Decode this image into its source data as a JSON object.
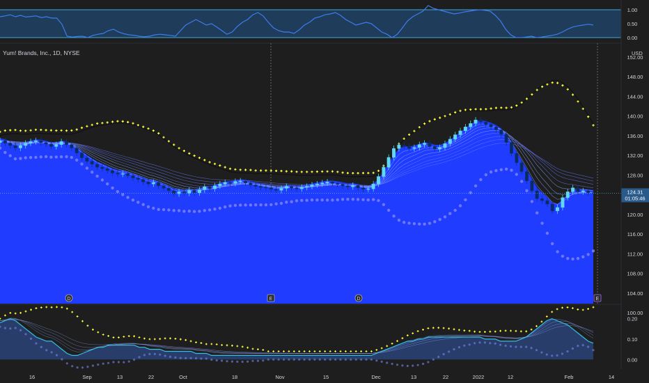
{
  "chart_data": {
    "type": "candlestick",
    "title": "Yum! Brands, Inc., 1D, NYSE",
    "currency_label": "USD",
    "last_price_label": "124.31",
    "countdown_label": "01:05:46",
    "colors": {
      "background": "#1e1e1e",
      "up_candle": "#5fd8f5",
      "down_candle": "#0a2a66",
      "ribbon_fill": "#1f3cff",
      "sar_dots": "#ffff3c",
      "lower_band_dots": "#7d83f2",
      "oscillator_line": "#3d7cf0",
      "oscillator_fill": "#2d4a8a",
      "panel_top_fill": "#1f3d5a",
      "price_tag": "#2a5a8a"
    },
    "x_axis": {
      "ticks": [
        "16",
        "Sep",
        "13",
        "22",
        "Oct",
        "18",
        "Nov",
        "15",
        "Dec",
        "13",
        "22",
        "2022",
        "12",
        "Feb",
        "14"
      ]
    },
    "price_panel": {
      "y_axis_ticks": [
        "152.00",
        "148.00",
        "144.00",
        "140.00",
        "136.00",
        "132.00",
        "128.00",
        "124.00",
        "120.00",
        "116.00",
        "112.00",
        "108.00",
        "104.00",
        "100.00"
      ],
      "ylim": [
        100,
        152
      ],
      "events": [
        "D",
        "E",
        "D",
        "E"
      ],
      "close": [
        135,
        134.5,
        134,
        133.5,
        134,
        134.5,
        134.8,
        135,
        134.6,
        134.3,
        133.8,
        134.2,
        134.8,
        134.2,
        133.5,
        132.5,
        131.5,
        130.8,
        130.2,
        129.6,
        129.3,
        128.9,
        128.4,
        128.2,
        128.3,
        127.9,
        127.4,
        127.1,
        126.6,
        126.2,
        126.5,
        125.8,
        125.3,
        124.8,
        124.2,
        124.6,
        124.3,
        124.9,
        124.4,
        125,
        125.6,
        125.2,
        125.8,
        126.2,
        126.5,
        126.3,
        126.7,
        126.8,
        126.4,
        126,
        125.7,
        125.5,
        125.4,
        125.1,
        124.9,
        125.3,
        125.7,
        125.4,
        125.2,
        125.5,
        125.7,
        126,
        126.2,
        126.4,
        126.6,
        126.3,
        126.1,
        125.8,
        125.6,
        125.9,
        125.4,
        125.1,
        125.2,
        126.2,
        127.7,
        129.6,
        131.6,
        133.4,
        134.1,
        133.8,
        133.4,
        133.6,
        134.2,
        134.5,
        133.8,
        133.3,
        133.6,
        134.4,
        135.3,
        136.2,
        137,
        137.8,
        138.5,
        139.2,
        138.8,
        138.3,
        137.8,
        137.2,
        136.3,
        134.6,
        132.4,
        130.5,
        128.7,
        126.8,
        124.8,
        123.2,
        122.8,
        122.1,
        120.7,
        121.4,
        123.4,
        124.6,
        125.4,
        124.6,
        124.8,
        124.4,
        124.31
      ]
    },
    "oscillator_top": {
      "y_axis_ticks": [
        "1.00",
        "0.50",
        "0.00"
      ],
      "ylim": [
        0,
        1
      ],
      "values": [
        0.75,
        0.78,
        0.82,
        0.75,
        0.8,
        0.74,
        0.76,
        0.78,
        0.72,
        0.75,
        0.7,
        0.7,
        0.48,
        0.05,
        0.02,
        0.04,
        0.05,
        0.0,
        0.08,
        0.12,
        0.15,
        0.25,
        0.3,
        0.2,
        0.14,
        0.1,
        0.08,
        0.05,
        0.03,
        0.05,
        0.1,
        0.12,
        0.1,
        0.08,
        0.05,
        0.25,
        0.45,
        0.55,
        0.65,
        0.55,
        0.45,
        0.5,
        0.38,
        0.25,
        0.12,
        0.2,
        0.4,
        0.55,
        0.65,
        0.82,
        0.9,
        0.78,
        0.55,
        0.35,
        0.25,
        0.2,
        0.2,
        0.15,
        0.28,
        0.45,
        0.55,
        0.7,
        0.75,
        0.82,
        0.85,
        0.9,
        0.8,
        0.65,
        0.55,
        0.45,
        0.5,
        0.55,
        0.5,
        0.35,
        0.2,
        0.12,
        0.0,
        0.12,
        0.35,
        0.6,
        0.75,
        0.85,
        0.95,
        1.15,
        1.05,
        1.0,
        0.95,
        0.9,
        0.85,
        0.88,
        0.92,
        0.95,
        0.98,
        1.0,
        0.98,
        0.95,
        0.8,
        0.6,
        0.3,
        0.1,
        0.0,
        0.0,
        0.02,
        0.05,
        0.0,
        0.02,
        0.05,
        0.08,
        0.12,
        0.2,
        0.3,
        0.38,
        0.42,
        0.45,
        0.48,
        0.45
      ]
    },
    "oscillator_bottom": {
      "y_axis_ticks": [
        "0.20",
        "0.10",
        "0.00"
      ],
      "ylim": [
        -0.04,
        0.26
      ],
      "values": [
        0.18,
        0.19,
        0.2,
        0.19,
        0.17,
        0.15,
        0.13,
        0.11,
        0.1,
        0.09,
        0.09,
        0.07,
        0.05,
        0.03,
        0.02,
        0.02,
        0.03,
        0.04,
        0.05,
        0.06,
        0.06,
        0.07,
        0.07,
        0.07,
        0.07,
        0.07,
        0.07,
        0.06,
        0.06,
        0.05,
        0.05,
        0.05,
        0.04,
        0.04,
        0.04,
        0.04,
        0.04,
        0.04,
        0.03,
        0.03,
        0.03,
        0.02,
        0.02,
        0.02,
        0.02,
        0.02,
        0.02,
        0.02,
        0.02,
        0.02,
        0.02,
        0.02,
        0.02,
        0.02,
        0.02,
        0.02,
        0.02,
        0.02,
        0.02,
        0.02,
        0.02,
        0.02,
        0.02,
        0.02,
        0.02,
        0.02,
        0.02,
        0.02,
        0.02,
        0.02,
        0.02,
        0.02,
        0.02,
        0.03,
        0.04,
        0.05,
        0.06,
        0.07,
        0.08,
        0.09,
        0.09,
        0.1,
        0.1,
        0.11,
        0.11,
        0.11,
        0.11,
        0.11,
        0.11,
        0.11,
        0.11,
        0.11,
        0.11,
        0.11,
        0.1,
        0.1,
        0.1,
        0.09,
        0.09,
        0.09,
        0.09,
        0.1,
        0.11,
        0.13,
        0.15,
        0.17,
        0.19,
        0.2,
        0.19,
        0.18,
        0.17,
        0.15,
        0.13,
        0.11,
        0.09,
        0.08
      ]
    }
  }
}
